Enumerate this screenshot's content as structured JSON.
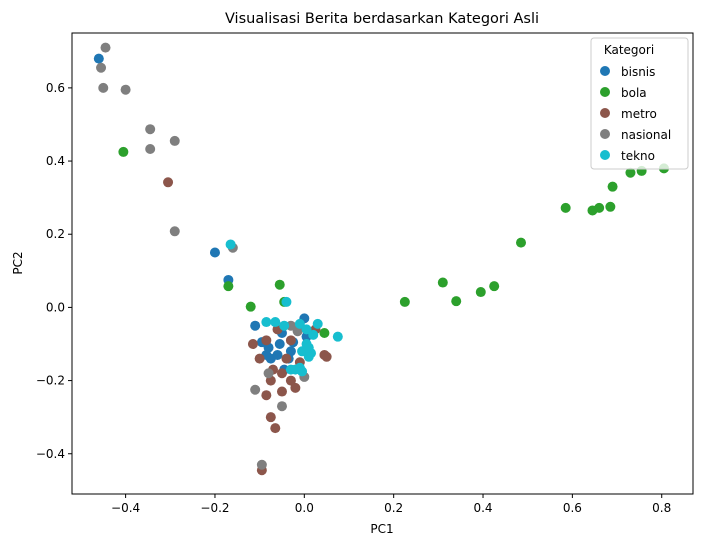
{
  "chart_data": {
    "type": "scatter",
    "title": "Visualisasi Berita berdasarkan Kategori Asli",
    "xlabel": "PC1",
    "ylabel": "PC2",
    "xlim": [
      -0.52,
      0.87
    ],
    "ylim": [
      -0.51,
      0.75
    ],
    "xticks": [
      -0.4,
      -0.2,
      0.0,
      0.2,
      0.4,
      0.6,
      0.8
    ],
    "xtick_labels": [
      "−0.4",
      "−0.2",
      "0.0",
      "0.2",
      "0.4",
      "0.6",
      "0.8"
    ],
    "yticks": [
      -0.4,
      -0.2,
      0.0,
      0.2,
      0.4,
      0.6
    ],
    "ytick_labels": [
      "−0.4",
      "−0.2",
      "0.0",
      "0.2",
      "0.4",
      "0.6"
    ],
    "grid": false,
    "legend": {
      "title": "Kategori",
      "placement": "top-right"
    },
    "series": [
      {
        "name": "bisnis",
        "color": "#1f77b4",
        "points": [
          [
            -0.46,
            0.68
          ],
          [
            -0.2,
            0.15
          ],
          [
            -0.17,
            0.075
          ],
          [
            -0.11,
            -0.05
          ],
          [
            -0.095,
            -0.095
          ],
          [
            -0.085,
            -0.13
          ],
          [
            -0.075,
            -0.14
          ],
          [
            -0.055,
            -0.1
          ],
          [
            -0.045,
            -0.17
          ],
          [
            -0.035,
            -0.14
          ],
          [
            -0.025,
            -0.095
          ],
          [
            -0.015,
            -0.06
          ],
          [
            0.0,
            -0.03
          ],
          [
            0.005,
            -0.08
          ],
          [
            -0.05,
            -0.07
          ],
          [
            -0.06,
            -0.13
          ],
          [
            -0.03,
            -0.12
          ],
          [
            -0.08,
            -0.11
          ]
        ]
      },
      {
        "name": "bola",
        "color": "#2ca02c",
        "points": [
          [
            -0.405,
            0.425
          ],
          [
            -0.17,
            0.058
          ],
          [
            -0.12,
            0.002
          ],
          [
            -0.055,
            0.062
          ],
          [
            -0.045,
            0.015
          ],
          [
            0.045,
            -0.07
          ],
          [
            0.225,
            0.015
          ],
          [
            0.31,
            0.068
          ],
          [
            0.34,
            0.017
          ],
          [
            0.395,
            0.042
          ],
          [
            0.425,
            0.058
          ],
          [
            0.485,
            0.177
          ],
          [
            0.585,
            0.272
          ],
          [
            0.645,
            0.265
          ],
          [
            0.66,
            0.272
          ],
          [
            0.685,
            0.275
          ],
          [
            0.69,
            0.33
          ],
          [
            0.73,
            0.368
          ],
          [
            0.755,
            0.373
          ],
          [
            0.805,
            0.38
          ]
        ]
      },
      {
        "name": "metro",
        "color": "#8c564b",
        "points": [
          [
            -0.305,
            0.342
          ],
          [
            -0.115,
            -0.1
          ],
          [
            -0.1,
            -0.14
          ],
          [
            -0.085,
            -0.09
          ],
          [
            -0.085,
            -0.24
          ],
          [
            -0.075,
            -0.2
          ],
          [
            -0.07,
            -0.17
          ],
          [
            -0.075,
            -0.3
          ],
          [
            -0.065,
            -0.33
          ],
          [
            -0.05,
            -0.23
          ],
          [
            -0.05,
            -0.18
          ],
          [
            -0.04,
            -0.14
          ],
          [
            -0.03,
            -0.2
          ],
          [
            -0.02,
            -0.22
          ],
          [
            -0.01,
            -0.15
          ],
          [
            -0.095,
            -0.445
          ],
          [
            -0.06,
            -0.06
          ],
          [
            0.025,
            -0.06
          ],
          [
            0.05,
            -0.135
          ],
          [
            0.045,
            -0.13
          ],
          [
            -0.03,
            -0.09
          ]
        ]
      },
      {
        "name": "nasional",
        "color": "#7f7f7f",
        "points": [
          [
            -0.445,
            0.71
          ],
          [
            -0.455,
            0.655
          ],
          [
            -0.45,
            0.6
          ],
          [
            -0.4,
            0.595
          ],
          [
            -0.345,
            0.487
          ],
          [
            -0.345,
            0.433
          ],
          [
            -0.29,
            0.455
          ],
          [
            -0.29,
            0.208
          ],
          [
            -0.16,
            0.163
          ],
          [
            -0.11,
            -0.225
          ],
          [
            -0.08,
            -0.18
          ],
          [
            -0.05,
            -0.27
          ],
          [
            -0.095,
            -0.43
          ],
          [
            0.0,
            -0.19
          ],
          [
            -0.03,
            -0.05
          ],
          [
            -0.015,
            -0.065
          ]
        ]
      },
      {
        "name": "tekno",
        "color": "#17becf",
        "points": [
          [
            -0.165,
            0.172
          ],
          [
            -0.04,
            0.015
          ],
          [
            -0.085,
            -0.04
          ],
          [
            -0.065,
            -0.04
          ],
          [
            -0.045,
            -0.05
          ],
          [
            -0.01,
            -0.045
          ],
          [
            0.005,
            -0.06
          ],
          [
            0.03,
            -0.045
          ],
          [
            0.075,
            -0.08
          ],
          [
            0.005,
            -0.1
          ],
          [
            0.015,
            -0.125
          ],
          [
            0.01,
            -0.135
          ],
          [
            -0.005,
            -0.12
          ],
          [
            -0.01,
            -0.165
          ],
          [
            -0.02,
            -0.17
          ],
          [
            -0.005,
            -0.175
          ],
          [
            0.01,
            -0.11
          ],
          [
            0.02,
            -0.075
          ],
          [
            -0.03,
            -0.17
          ]
        ]
      }
    ]
  }
}
